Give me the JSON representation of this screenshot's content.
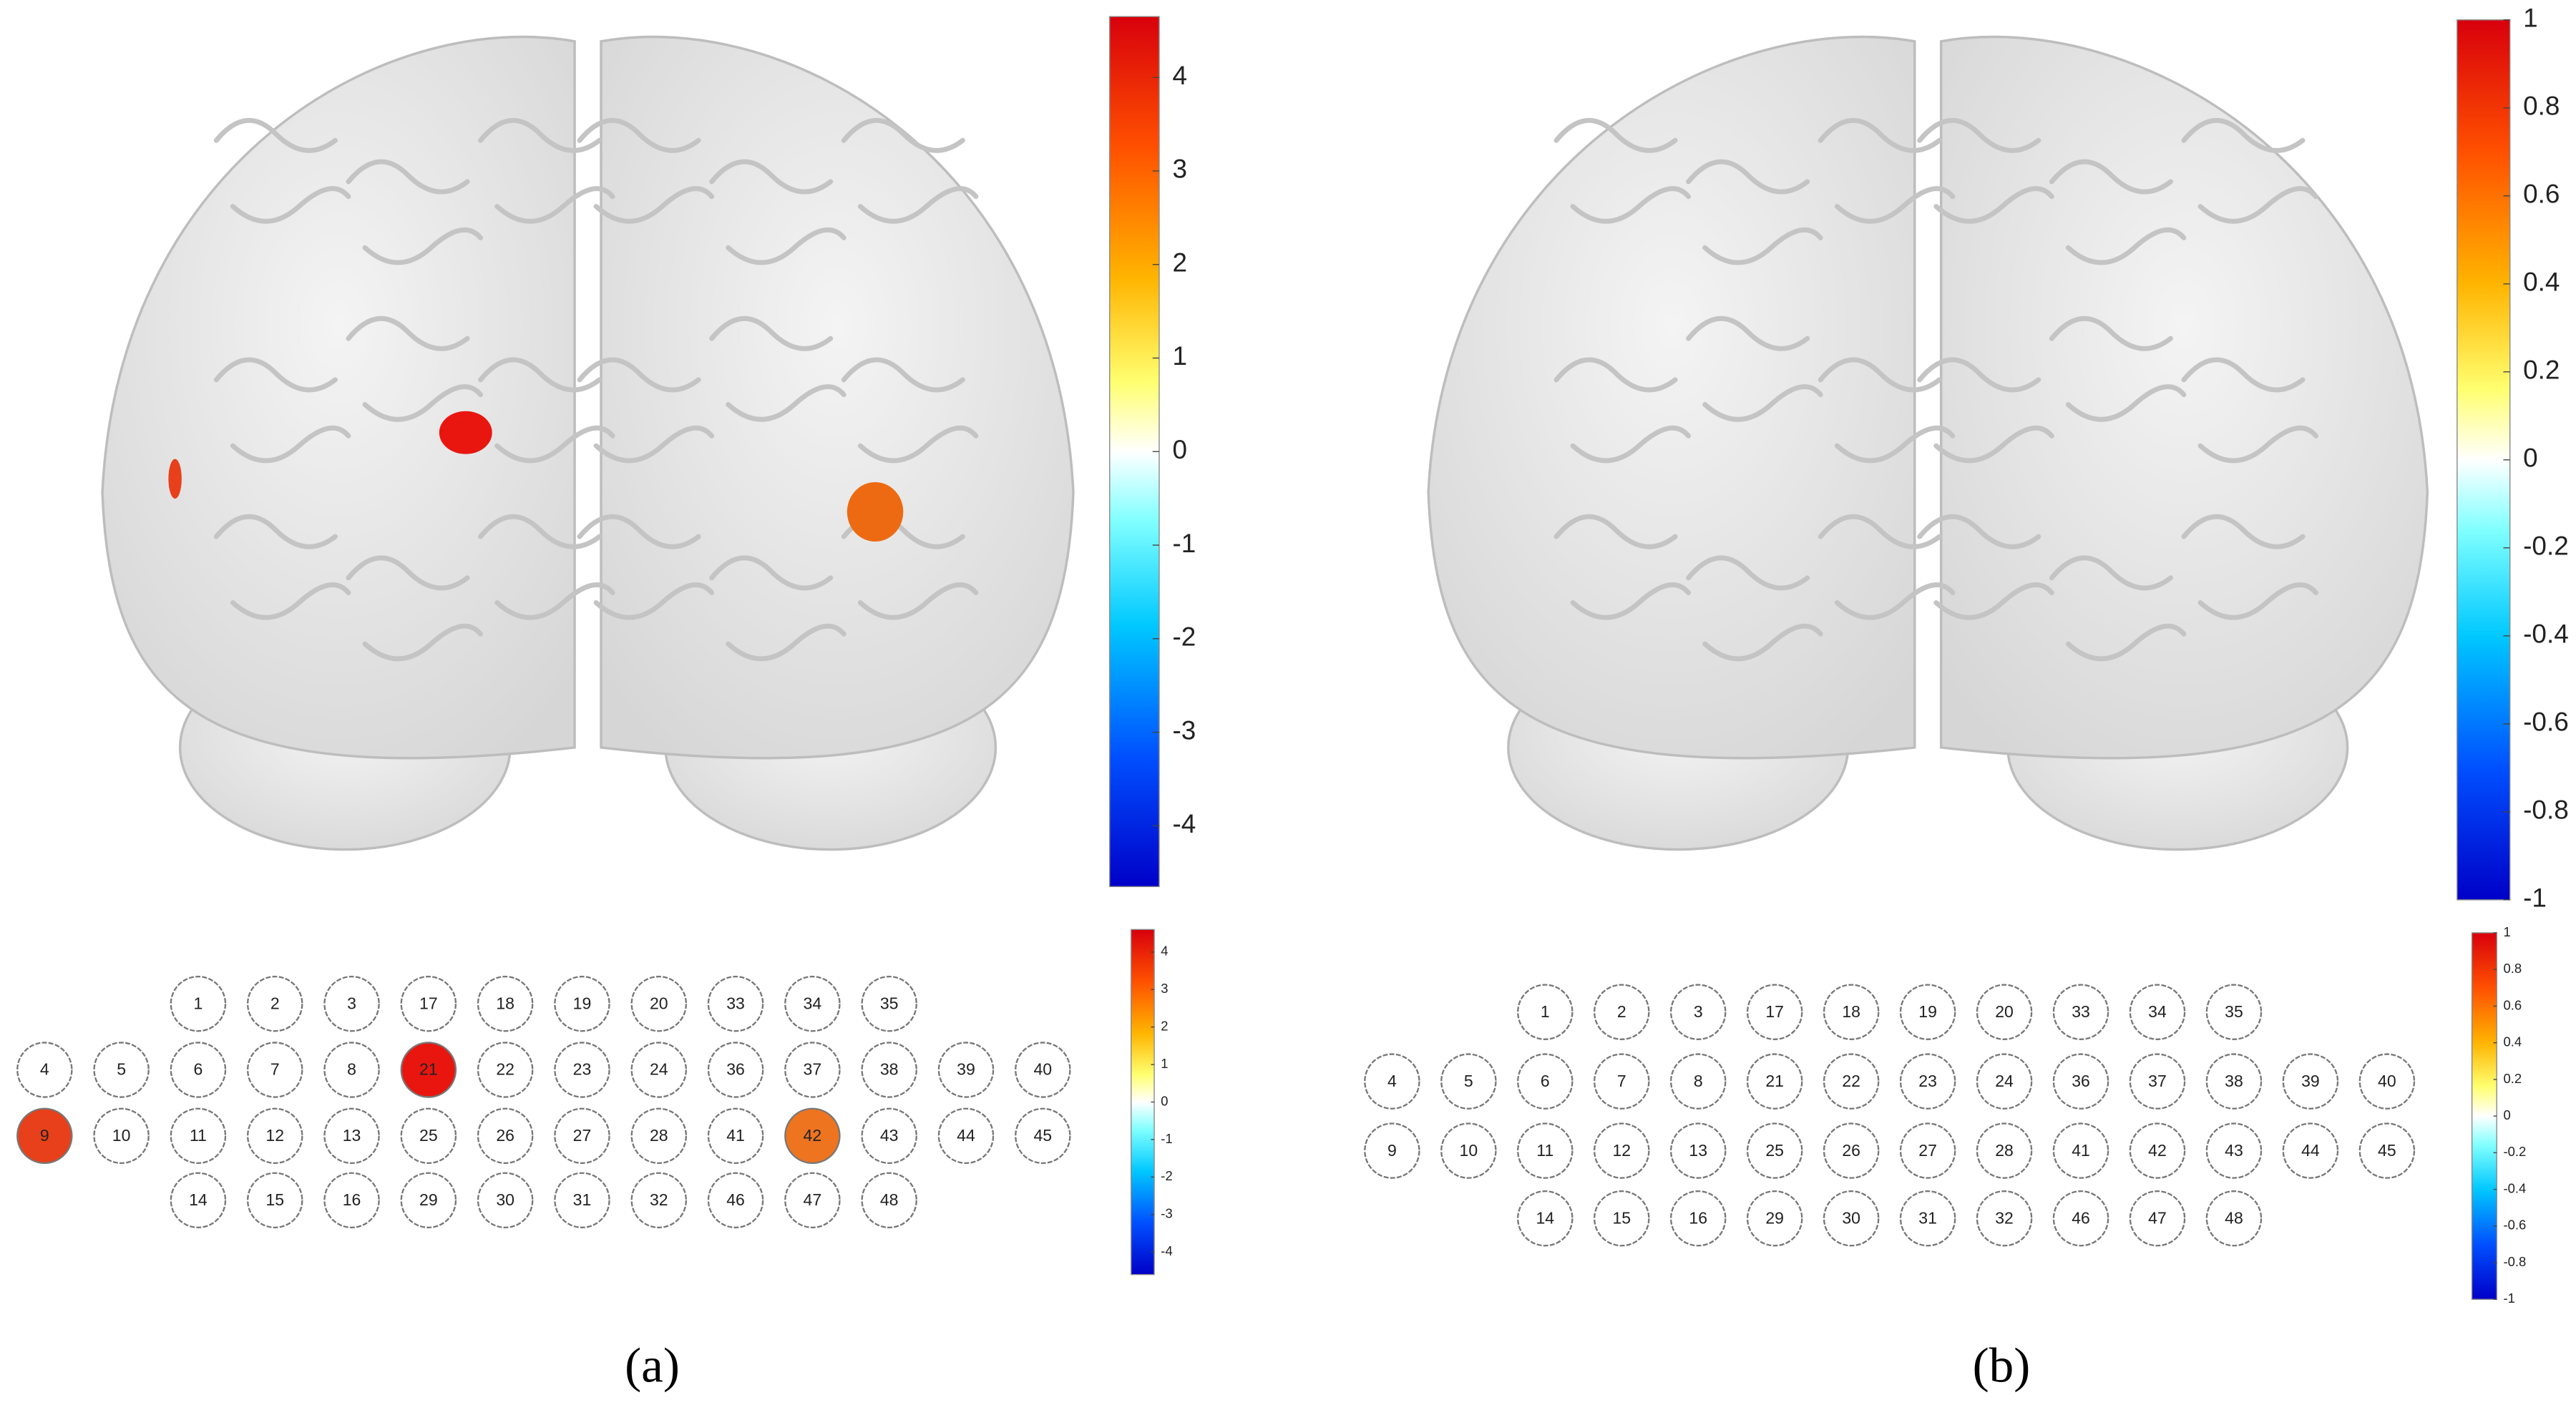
{
  "panels": [
    {
      "caption": "(a)",
      "brain_colorbar": {
        "lim": [
          -4.65,
          4.65
        ],
        "ticks": [
          4,
          3,
          2,
          1,
          0,
          -1,
          -2,
          -3,
          -4
        ]
      },
      "channel_colorbar": {
        "lim": [
          -4.6,
          4.6
        ],
        "ticks": [
          4,
          3,
          2,
          1,
          0,
          -1,
          -2,
          -3,
          -4
        ]
      },
      "brain_spots": [
        "#e8160f",
        "#ee6a12",
        "#e8401a"
      ],
      "channels": [
        [
          null,
          null,
          "1",
          "2",
          "3",
          "17",
          "18",
          "19",
          "20",
          "33",
          "34",
          "35",
          null,
          null
        ],
        [
          "4",
          "5",
          "6",
          "7",
          "8",
          {
            "label": "21",
            "color": "#e8160f"
          },
          "22",
          "23",
          "24",
          "36",
          "37",
          "38",
          "39",
          "40"
        ],
        [
          {
            "label": "9",
            "color": "#e8401a"
          },
          "10",
          "11",
          "12",
          "13",
          "25",
          "26",
          "27",
          "28",
          "41",
          {
            "label": "42",
            "color": "#ee7420"
          },
          "43",
          "44",
          "45"
        ],
        [
          null,
          null,
          "14",
          "15",
          "16",
          "29",
          "30",
          "31",
          "32",
          "46",
          "47",
          "48",
          null,
          null
        ]
      ]
    },
    {
      "caption": "(b)",
      "brain_colorbar": {
        "lim": [
          -1,
          1
        ],
        "ticks": [
          1,
          0.8,
          0.6,
          0.4,
          0.2,
          0,
          -0.2,
          -0.4,
          -0.6,
          -0.8,
          -1
        ]
      },
      "channel_colorbar": {
        "lim": [
          -1,
          1
        ],
        "ticks": [
          1,
          0.8,
          0.6,
          0.4,
          0.2,
          0,
          -0.2,
          -0.4,
          -0.6,
          -0.8,
          -1
        ]
      },
      "brain_spots": [],
      "channels": [
        [
          null,
          null,
          "1",
          "2",
          "3",
          "17",
          "18",
          "19",
          "20",
          "33",
          "34",
          "35",
          null,
          null
        ],
        [
          "4",
          "5",
          "6",
          "7",
          "8",
          "21",
          "22",
          "23",
          "24",
          "36",
          "37",
          "38",
          "39",
          "40"
        ],
        [
          "9",
          "10",
          "11",
          "12",
          "13",
          "25",
          "26",
          "27",
          "28",
          "41",
          "42",
          "43",
          "44",
          "45"
        ],
        [
          null,
          null,
          "14",
          "15",
          "16",
          "29",
          "30",
          "31",
          "32",
          "46",
          "47",
          "48",
          null,
          null
        ]
      ]
    }
  ]
}
